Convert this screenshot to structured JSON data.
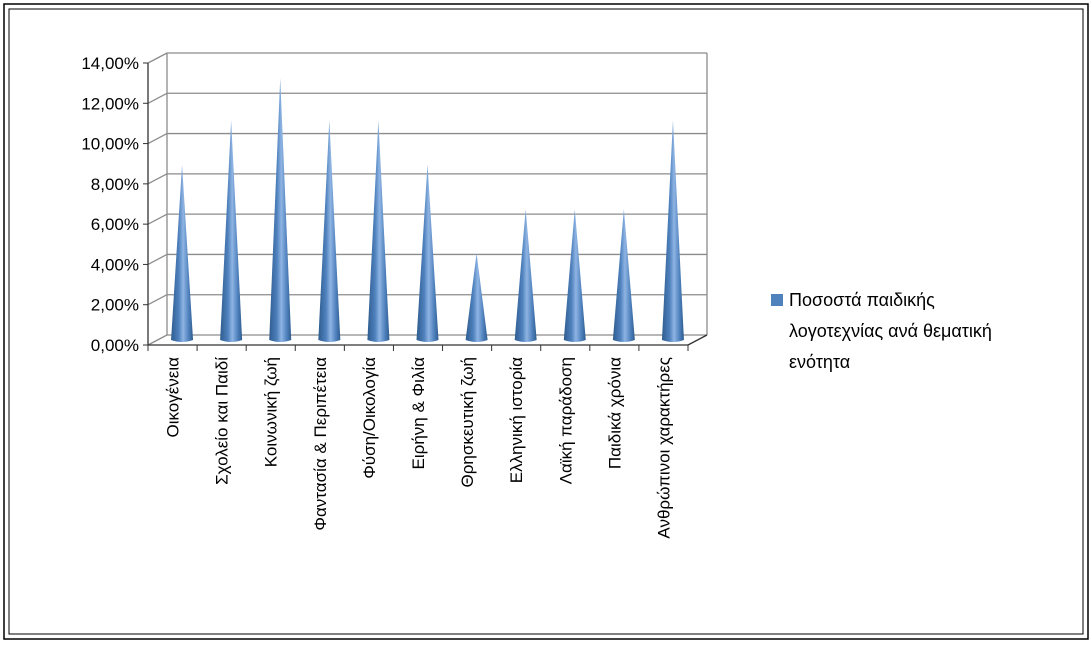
{
  "chart_data": {
    "type": "bar",
    "bar_shape": "cone-3d",
    "categories": [
      "Οικογένεια",
      "Σχολείο και Παιδί",
      "Κοινωνική ζωή",
      "Φαντασία & Περιπέτεια",
      "Φύση/Οικολογία",
      "Ειρήνη & Φιλία",
      "Θρησκευτική ζωή",
      "Ελληνική ιστορία",
      "Λαϊκή παράδοση",
      "Παιδικά χρόνια",
      "Ανθρώπινοι χαρακτήρες"
    ],
    "series": [
      {
        "name": "Ποσοστά παιδικής λογοτεχνίας ανά θεματική ενότητα",
        "values": [
          0.087,
          0.109,
          0.13,
          0.109,
          0.109,
          0.087,
          0.043,
          0.065,
          0.065,
          0.065,
          0.109
        ]
      }
    ],
    "yticks": [
      "0,00%",
      "2,00%",
      "4,00%",
      "6,00%",
      "8,00%",
      "10,00%",
      "12,00%",
      "14,00%"
    ],
    "ylim": [
      0,
      0.14
    ],
    "grid": true,
    "legend_position": "right",
    "colors": {
      "bar": "#4F81BD",
      "bar_light": "#8EB4E3",
      "bar_dark": "#2E5C8E",
      "grid": "#8C8C8C"
    }
  },
  "legend": {
    "lines": [
      "Ποσοστά παιδικής",
      "λογοτεχνίας ανά θεματική",
      "ενότητα"
    ]
  }
}
